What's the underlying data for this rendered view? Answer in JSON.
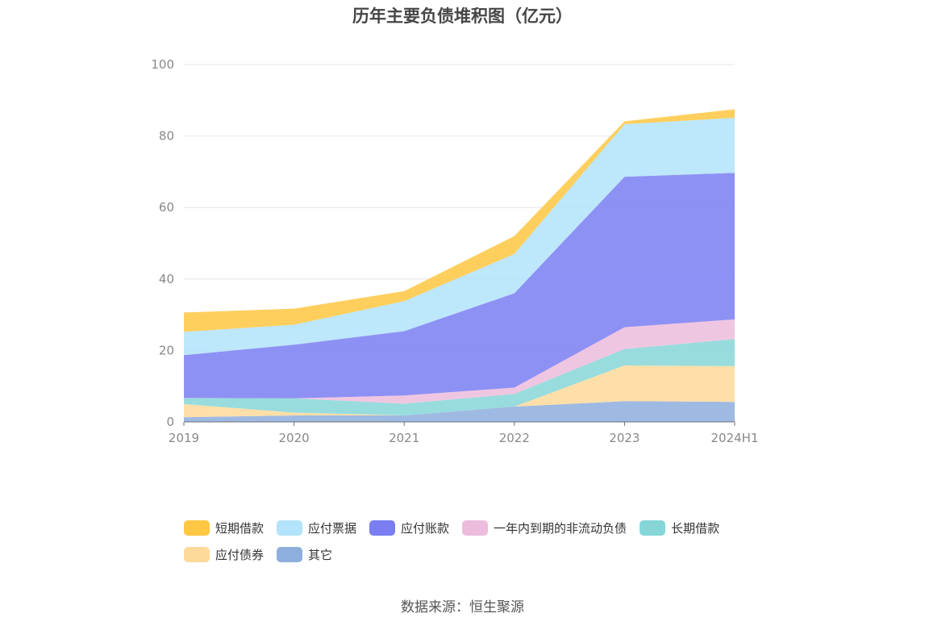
{
  "chart_data": {
    "type": "area",
    "stacked": true,
    "title": "历年主要负债堆积图（亿元）",
    "categories": [
      "2019",
      "2020",
      "2021",
      "2022",
      "2023",
      "2024H1"
    ],
    "ylim": [
      0,
      100
    ],
    "yticks": [
      "0",
      "20",
      "40",
      "60",
      "80",
      "100"
    ],
    "grid": true,
    "legend_position": "bottom",
    "series": [
      {
        "name": "其它",
        "color": "#8eaedd",
        "values": [
          1.3,
          1.8,
          1.8,
          4.3,
          5.8,
          5.6
        ]
      },
      {
        "name": "应付债券",
        "color": "#ffd99a",
        "values": [
          3.7,
          0.8,
          0,
          0,
          10.0,
          10.0
        ]
      },
      {
        "name": "长期借款",
        "color": "#86d6d8",
        "values": [
          1.7,
          4.0,
          3.3,
          3.5,
          4.6,
          7.6
        ]
      },
      {
        "name": "一年内到期的非流动负债",
        "color": "#ecbcdc",
        "values": [
          0,
          0,
          2.3,
          1.8,
          6.1,
          5.5
        ]
      },
      {
        "name": "应付账款",
        "color": "#7a7ef2",
        "values": [
          12.0,
          15.0,
          18.0,
          26.4,
          42.1,
          41.0
        ]
      },
      {
        "name": "应付票据",
        "color": "#b2e3fa",
        "values": [
          6.5,
          5.6,
          8.4,
          11.0,
          14.7,
          15.4
        ]
      },
      {
        "name": "短期借款",
        "color": "#ffc742",
        "values": [
          5.4,
          4.5,
          2.8,
          5.0,
          0.8,
          2.4
        ]
      }
    ],
    "legend_order": [
      "短期借款",
      "应付票据",
      "应付账款",
      "一年内到期的非流动负债",
      "长期借款",
      "应付债券",
      "其它"
    ]
  },
  "source": "数据来源：恒生聚源"
}
